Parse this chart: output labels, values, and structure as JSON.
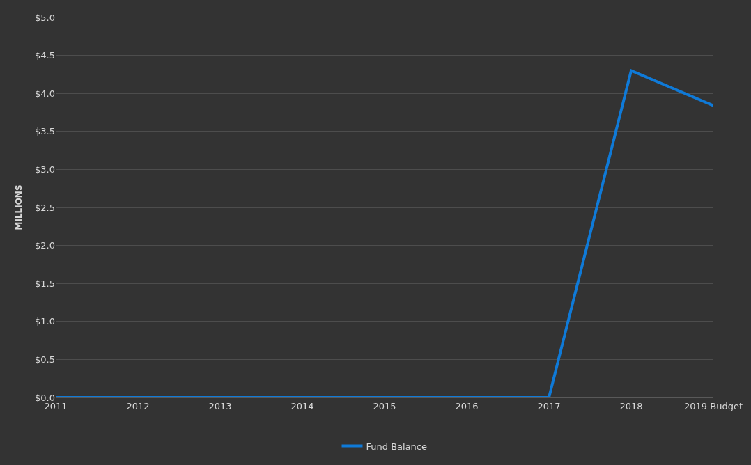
{
  "chart_data": {
    "type": "line",
    "ylabel": "MILLIONS",
    "categories": [
      "2011",
      "2012",
      "2013",
      "2014",
      "2015",
      "2016",
      "2017",
      "2018",
      "2019 Budget"
    ],
    "series": [
      {
        "name": "Fund Balance",
        "color": "#0f7ad8",
        "values": [
          0,
          0,
          0,
          0,
          0,
          0,
          0,
          4.3,
          3.84
        ]
      }
    ],
    "ylim": [
      0,
      5
    ],
    "yticks": [
      {
        "value": 0,
        "label": "$0.0"
      },
      {
        "value": 0.5,
        "label": "$0.5"
      },
      {
        "value": 1,
        "label": "$1.0"
      },
      {
        "value": 1.5,
        "label": "$1.5"
      },
      {
        "value": 2,
        "label": "$2.0"
      },
      {
        "value": 2.5,
        "label": "$2.5"
      },
      {
        "value": 3,
        "label": "$3.0"
      },
      {
        "value": 3.5,
        "label": "$3.5"
      },
      {
        "value": 4,
        "label": "$4.0"
      },
      {
        "value": 4.5,
        "label": "$4.5"
      },
      {
        "value": 5,
        "label": "$5.0"
      }
    ],
    "grid": "y",
    "legend": "bottom",
    "marker": "none",
    "line_style": "solid"
  }
}
